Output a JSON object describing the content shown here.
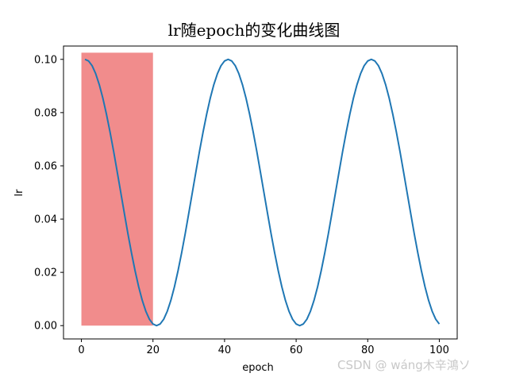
{
  "chart_data": {
    "type": "line",
    "title": "lr随epoch的变化曲线图",
    "xlabel": "epoch",
    "ylabel": "lr",
    "xlim": [
      -5,
      105
    ],
    "ylim": [
      -0.005,
      0.105
    ],
    "xticks": [
      0,
      20,
      40,
      60,
      80,
      100
    ],
    "yticks": [
      0.0,
      0.02,
      0.04,
      0.06,
      0.08,
      0.1
    ],
    "xtick_labels": [
      "0",
      "20",
      "40",
      "60",
      "80",
      "100"
    ],
    "ytick_labels": [
      "0.00",
      "0.02",
      "0.04",
      "0.06",
      "0.08",
      "0.10"
    ],
    "grid": false,
    "series": [
      {
        "color": "#1f77b4",
        "x": [
          1,
          2,
          3,
          4,
          5,
          6,
          7,
          8,
          9,
          10,
          11,
          12,
          13,
          14,
          15,
          16,
          17,
          18,
          19,
          20,
          21,
          22,
          23,
          24,
          25,
          26,
          27,
          28,
          29,
          30,
          31,
          32,
          33,
          34,
          35,
          36,
          37,
          38,
          39,
          40,
          41,
          42,
          43,
          44,
          45,
          46,
          47,
          48,
          49,
          50,
          51,
          52,
          53,
          54,
          55,
          56,
          57,
          58,
          59,
          60,
          61,
          62,
          63,
          64,
          65,
          66,
          67,
          68,
          69,
          70,
          71,
          72,
          73,
          74,
          75,
          76,
          77,
          78,
          79,
          80,
          81,
          82,
          83,
          84,
          85,
          86,
          87,
          88,
          89,
          90,
          91,
          92,
          93,
          94,
          95,
          96,
          97,
          98,
          99,
          100
        ],
        "y": [
          0.1,
          0.0994,
          0.0976,
          0.0946,
          0.0905,
          0.0854,
          0.0794,
          0.0727,
          0.0655,
          0.0578,
          0.05,
          0.0422,
          0.0345,
          0.0273,
          0.0206,
          0.0146,
          0.0095,
          0.0054,
          0.0024,
          0.0006,
          0.0,
          0.0006,
          0.0024,
          0.0054,
          0.0095,
          0.0146,
          0.0206,
          0.0273,
          0.0345,
          0.0422,
          0.05,
          0.0578,
          0.0655,
          0.0727,
          0.0794,
          0.0854,
          0.0905,
          0.0946,
          0.0976,
          0.0994,
          0.1,
          0.0994,
          0.0976,
          0.0946,
          0.0905,
          0.0854,
          0.0794,
          0.0727,
          0.0655,
          0.0578,
          0.05,
          0.0422,
          0.0345,
          0.0273,
          0.0206,
          0.0146,
          0.0095,
          0.0054,
          0.0024,
          0.0006,
          0.0,
          0.0006,
          0.0024,
          0.0054,
          0.0095,
          0.0146,
          0.0206,
          0.0273,
          0.0345,
          0.0422,
          0.05,
          0.0578,
          0.0655,
          0.0727,
          0.0794,
          0.0854,
          0.0905,
          0.0946,
          0.0976,
          0.0994,
          0.1,
          0.0994,
          0.0976,
          0.0946,
          0.0905,
          0.0854,
          0.0794,
          0.0727,
          0.0655,
          0.0578,
          0.05,
          0.0422,
          0.0345,
          0.0273,
          0.0206,
          0.0146,
          0.0095,
          0.0054,
          0.0024,
          0.0006
        ]
      }
    ],
    "highlight_region": {
      "x_range": [
        0,
        20
      ],
      "y_range": [
        0.0,
        0.1025
      ],
      "color": "#f08080",
      "alpha": 0.9
    }
  },
  "watermark": {
    "text": "CSDN @ wáng木辛鴻ソ"
  }
}
